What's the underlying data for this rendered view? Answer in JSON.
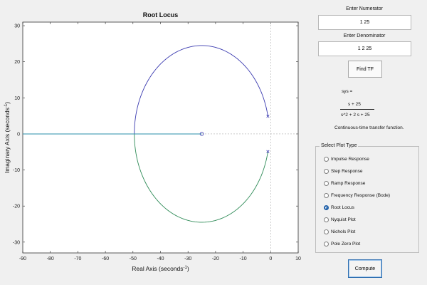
{
  "chart_data": {
    "type": "line",
    "title": "Root Locus",
    "xlabel": "Real Axis (seconds",
    "xlabel_sup": "-1",
    "ylabel": "Imaginary Axis (seconds",
    "ylabel_sup": "-1",
    "xlim": [
      -90,
      10
    ],
    "ylim": [
      -33,
      31
    ],
    "x_ticks": [
      -90,
      -80,
      -70,
      -60,
      -50,
      -40,
      -30,
      -20,
      -10,
      0,
      10
    ],
    "y_ticks": [
      -30,
      -20,
      -10,
      0,
      10,
      20,
      30
    ],
    "grid": false,
    "poles": [
      [
        -1,
        4.9
      ],
      [
        -1,
        -4.9
      ]
    ],
    "zeros": [
      [
        -25,
        0
      ]
    ],
    "breakin_point": -49.5,
    "circle_center": [
      -25,
      0
    ],
    "circle_radius": 24.5,
    "branch_colors": [
      "#3b3bb0",
      "#2e8b57",
      "#2a8fa8"
    ],
    "series": [
      {
        "name": "",
        "color": "#3b3bb0",
        "desc": "upper branch from pole to breakin"
      },
      {
        "name": "",
        "color": "#2e8b57",
        "desc": "lower branch from pole to breakin"
      },
      {
        "name": "",
        "color": "#2a8fa8",
        "desc": "real-axis branch from breakin to zero / -inf"
      }
    ]
  },
  "controls": {
    "numerator_label": "Enter Numerator",
    "numerator_value": "1 25",
    "denominator_label": "Enter Denominator",
    "denominator_value": "1 2 25",
    "find_tf_button": "Find TF",
    "sys_label": "sys =",
    "tf_numerator": "s + 25",
    "tf_denominator": "s^2 + 2 s + 25",
    "tf_caption": "Continuous-time transfer function."
  },
  "plot_type": {
    "title": "Select Plot Type",
    "options": [
      {
        "label": "Impulse Response",
        "selected": false
      },
      {
        "label": "Step Response",
        "selected": false
      },
      {
        "label": "Ramp Response",
        "selected": false
      },
      {
        "label": "Frequency Response (Bode)",
        "selected": false
      },
      {
        "label": "Root Locus",
        "selected": true
      },
      {
        "label": "Nyquist Plot",
        "selected": false
      },
      {
        "label": "Nichols Plot",
        "selected": false
      },
      {
        "label": "Pole Zero Plot",
        "selected": false
      }
    ]
  },
  "compute_button": "Compute"
}
